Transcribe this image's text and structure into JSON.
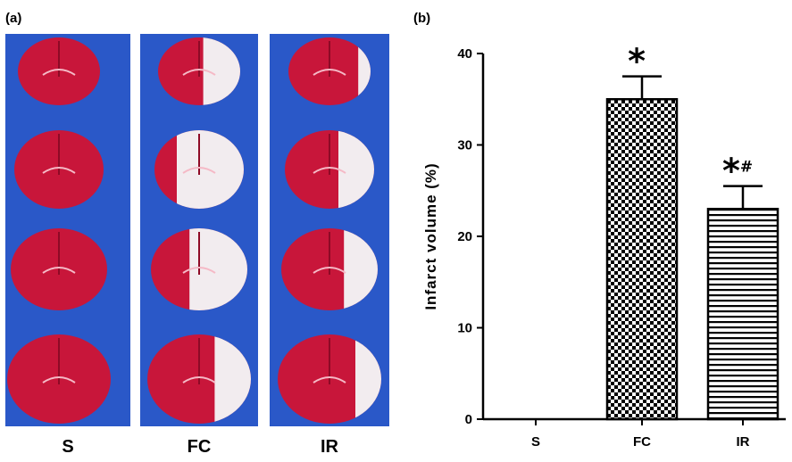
{
  "panel_a": {
    "label": "(a)",
    "groups": [
      "S",
      "FC",
      "IR"
    ],
    "colors": {
      "background": "#2a58c8",
      "tissue": "#c8163a",
      "infarct": "#f2ecef"
    }
  },
  "panel_b": {
    "label": "(b)"
  },
  "chart_data": {
    "type": "bar",
    "categories": [
      "S",
      "FC",
      "IR"
    ],
    "values": [
      0,
      35,
      23
    ],
    "error": [
      0,
      2.5,
      2.5
    ],
    "ylabel": "Infarct volume (%)",
    "xlabel": "",
    "ylim": [
      0,
      40
    ],
    "yticks": [
      0,
      10,
      20,
      30,
      40
    ],
    "annotations": [
      "",
      "*",
      "*#"
    ],
    "patterns": [
      "none",
      "checkerboard",
      "horizontal-stripes"
    ]
  }
}
